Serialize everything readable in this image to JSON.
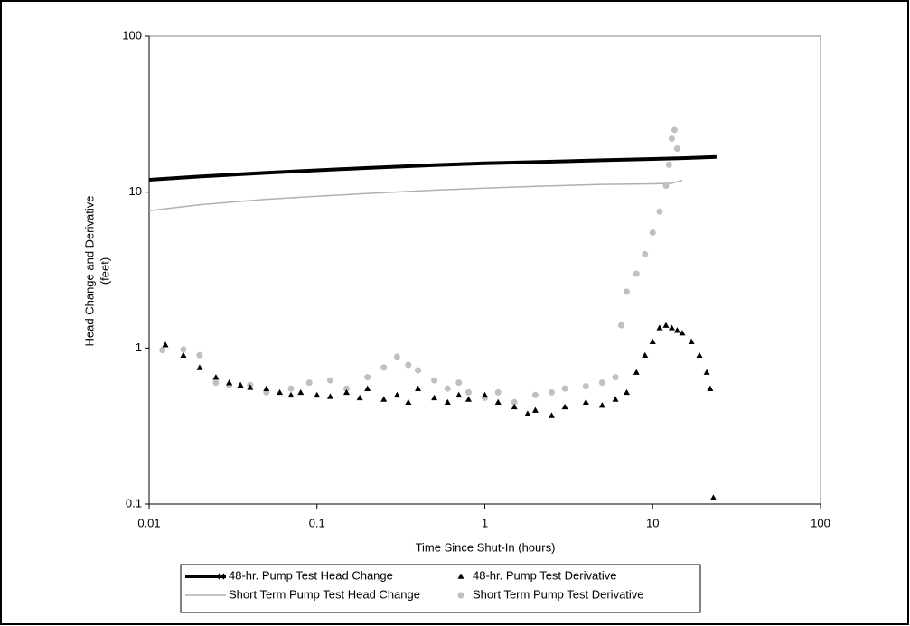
{
  "chart_data": {
    "type": "scatter",
    "xlabel": "Time Since Shut-In (hours)",
    "ylabel": [
      "Head Change and Derivative",
      "(feet)"
    ],
    "xscale": "log",
    "yscale": "log",
    "xlim": [
      0.01,
      100
    ],
    "ylim": [
      0.1,
      100
    ],
    "xticks": [
      0.01,
      0.1,
      1,
      10,
      100
    ],
    "yticks": [
      0.1,
      1,
      10,
      100
    ],
    "legend": "bottom",
    "series": [
      {
        "name": "48-hr. Pump Test Head Change",
        "color": "#000000",
        "style": "line",
        "x": [
          0.01,
          0.02,
          0.05,
          0.1,
          0.2,
          0.5,
          1,
          2,
          5,
          10,
          15,
          24
        ],
        "values": [
          12.0,
          12.6,
          13.3,
          13.8,
          14.3,
          14.9,
          15.3,
          15.6,
          16.0,
          16.3,
          16.5,
          16.8
        ]
      },
      {
        "name": "48-hr. Pump Test Derivative",
        "color": "#000000",
        "style": "triangle",
        "x": [
          0.0125,
          0.016,
          0.02,
          0.025,
          0.03,
          0.035,
          0.04,
          0.05,
          0.06,
          0.07,
          0.08,
          0.1,
          0.12,
          0.15,
          0.18,
          0.2,
          0.25,
          0.3,
          0.35,
          0.4,
          0.5,
          0.6,
          0.7,
          0.8,
          1,
          1.2,
          1.5,
          1.8,
          2,
          2.5,
          3,
          4,
          5,
          6,
          7,
          8,
          9,
          10,
          11,
          12,
          13,
          14,
          15,
          17,
          19,
          21,
          22,
          23
        ],
        "values": [
          1.05,
          0.9,
          0.75,
          0.65,
          0.6,
          0.58,
          0.56,
          0.55,
          0.52,
          0.5,
          0.52,
          0.5,
          0.49,
          0.52,
          0.48,
          0.55,
          0.47,
          0.5,
          0.45,
          0.55,
          0.48,
          0.45,
          0.5,
          0.47,
          0.5,
          0.45,
          0.42,
          0.38,
          0.4,
          0.37,
          0.42,
          0.45,
          0.43,
          0.47,
          0.52,
          0.7,
          0.9,
          1.1,
          1.35,
          1.4,
          1.35,
          1.3,
          1.25,
          1.1,
          0.9,
          0.7,
          0.55,
          0.11
        ]
      },
      {
        "name": "Short Term Pump Test Head Change",
        "color": "#b0b0b0",
        "style": "line",
        "x": [
          0.01,
          0.02,
          0.05,
          0.1,
          0.2,
          0.5,
          1,
          2,
          5,
          10,
          13,
          15
        ],
        "values": [
          7.6,
          8.3,
          9.0,
          9.4,
          9.8,
          10.3,
          10.6,
          10.9,
          11.2,
          11.3,
          11.4,
          11.9
        ]
      },
      {
        "name": "Short Term Pump Test Derivative",
        "color": "#c0c0c0",
        "style": "circle",
        "x": [
          0.012,
          0.016,
          0.02,
          0.025,
          0.03,
          0.04,
          0.05,
          0.07,
          0.09,
          0.12,
          0.15,
          0.2,
          0.25,
          0.3,
          0.35,
          0.4,
          0.5,
          0.6,
          0.7,
          0.8,
          1,
          1.2,
          1.5,
          2,
          2.5,
          3,
          4,
          5,
          6,
          6.5,
          7,
          8,
          9,
          10,
          11,
          12,
          12.5,
          13,
          13.5,
          14
        ],
        "values": [
          0.97,
          0.98,
          0.9,
          0.6,
          0.58,
          0.58,
          0.52,
          0.55,
          0.6,
          0.62,
          0.55,
          0.65,
          0.75,
          0.88,
          0.78,
          0.72,
          0.62,
          0.55,
          0.6,
          0.52,
          0.48,
          0.52,
          0.45,
          0.5,
          0.52,
          0.55,
          0.57,
          0.6,
          0.65,
          1.4,
          2.3,
          3.0,
          4.0,
          5.5,
          7.5,
          11,
          15,
          22,
          25,
          19
        ]
      }
    ]
  }
}
